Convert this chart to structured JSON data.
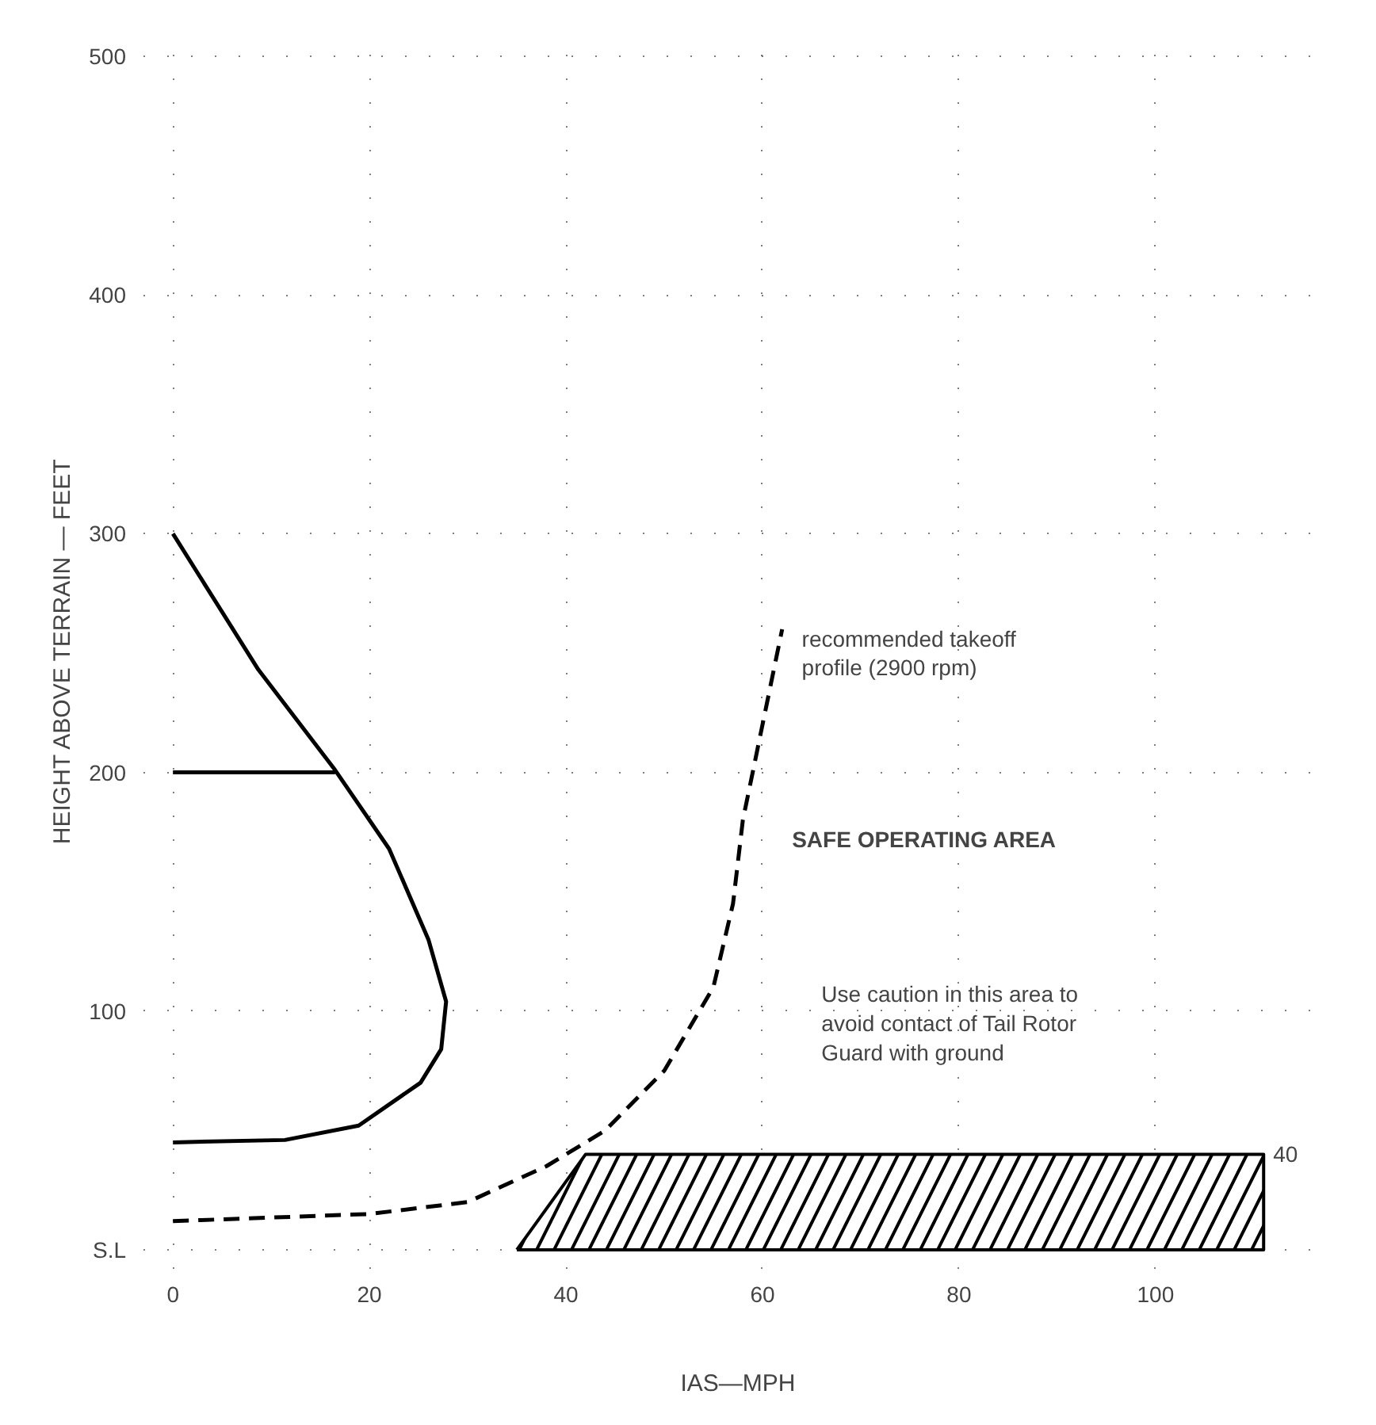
{
  "chart_data": {
    "type": "line",
    "xlabel": "IAS—MPH",
    "ylabel": "HEIGHT ABOVE TERRAIN — FEET",
    "xlim": [
      -3,
      118
    ],
    "ylim": [
      -8,
      510
    ],
    "xticks": [
      0,
      20,
      40,
      60,
      80,
      100
    ],
    "yticks": [
      {
        "value": 0,
        "label": "S.L"
      },
      100,
      200,
      300,
      400,
      500
    ],
    "grid": true,
    "series": [
      {
        "color": "#000000",
        "x": [
          0,
          8.7,
          16.5,
          22,
          26,
          27.8,
          27.3,
          25.2,
          18.9,
          11.4,
          0
        ],
        "values": [
          300,
          243,
          201,
          168,
          130,
          104,
          84,
          70,
          52,
          46,
          45
        ]
      },
      {
        "color": "#000000",
        "x": [
          0,
          16.5
        ],
        "values": [
          200,
          200
        ]
      },
      {
        "color": "#000000",
        "line_style": "dashed",
        "x": [
          0,
          20,
          30,
          38,
          44,
          50,
          55,
          57,
          58,
          62
        ],
        "values": [
          12,
          15,
          20,
          35,
          50,
          75,
          110,
          145,
          180,
          260
        ]
      },
      {
        "type": "area",
        "color": "#000000",
        "x": [
          35,
          42,
          111
        ],
        "values": [
          0,
          40,
          40
        ]
      }
    ],
    "annotations": [
      "recommended takeoff\nprofile (2900 rpm)",
      "SAFE OPERATING AREA",
      "Use caution in this area to\navoid contact of Tail Rotor\nGuard with ground",
      {
        "text": "40",
        "x": 111,
        "y": 40
      }
    ]
  }
}
